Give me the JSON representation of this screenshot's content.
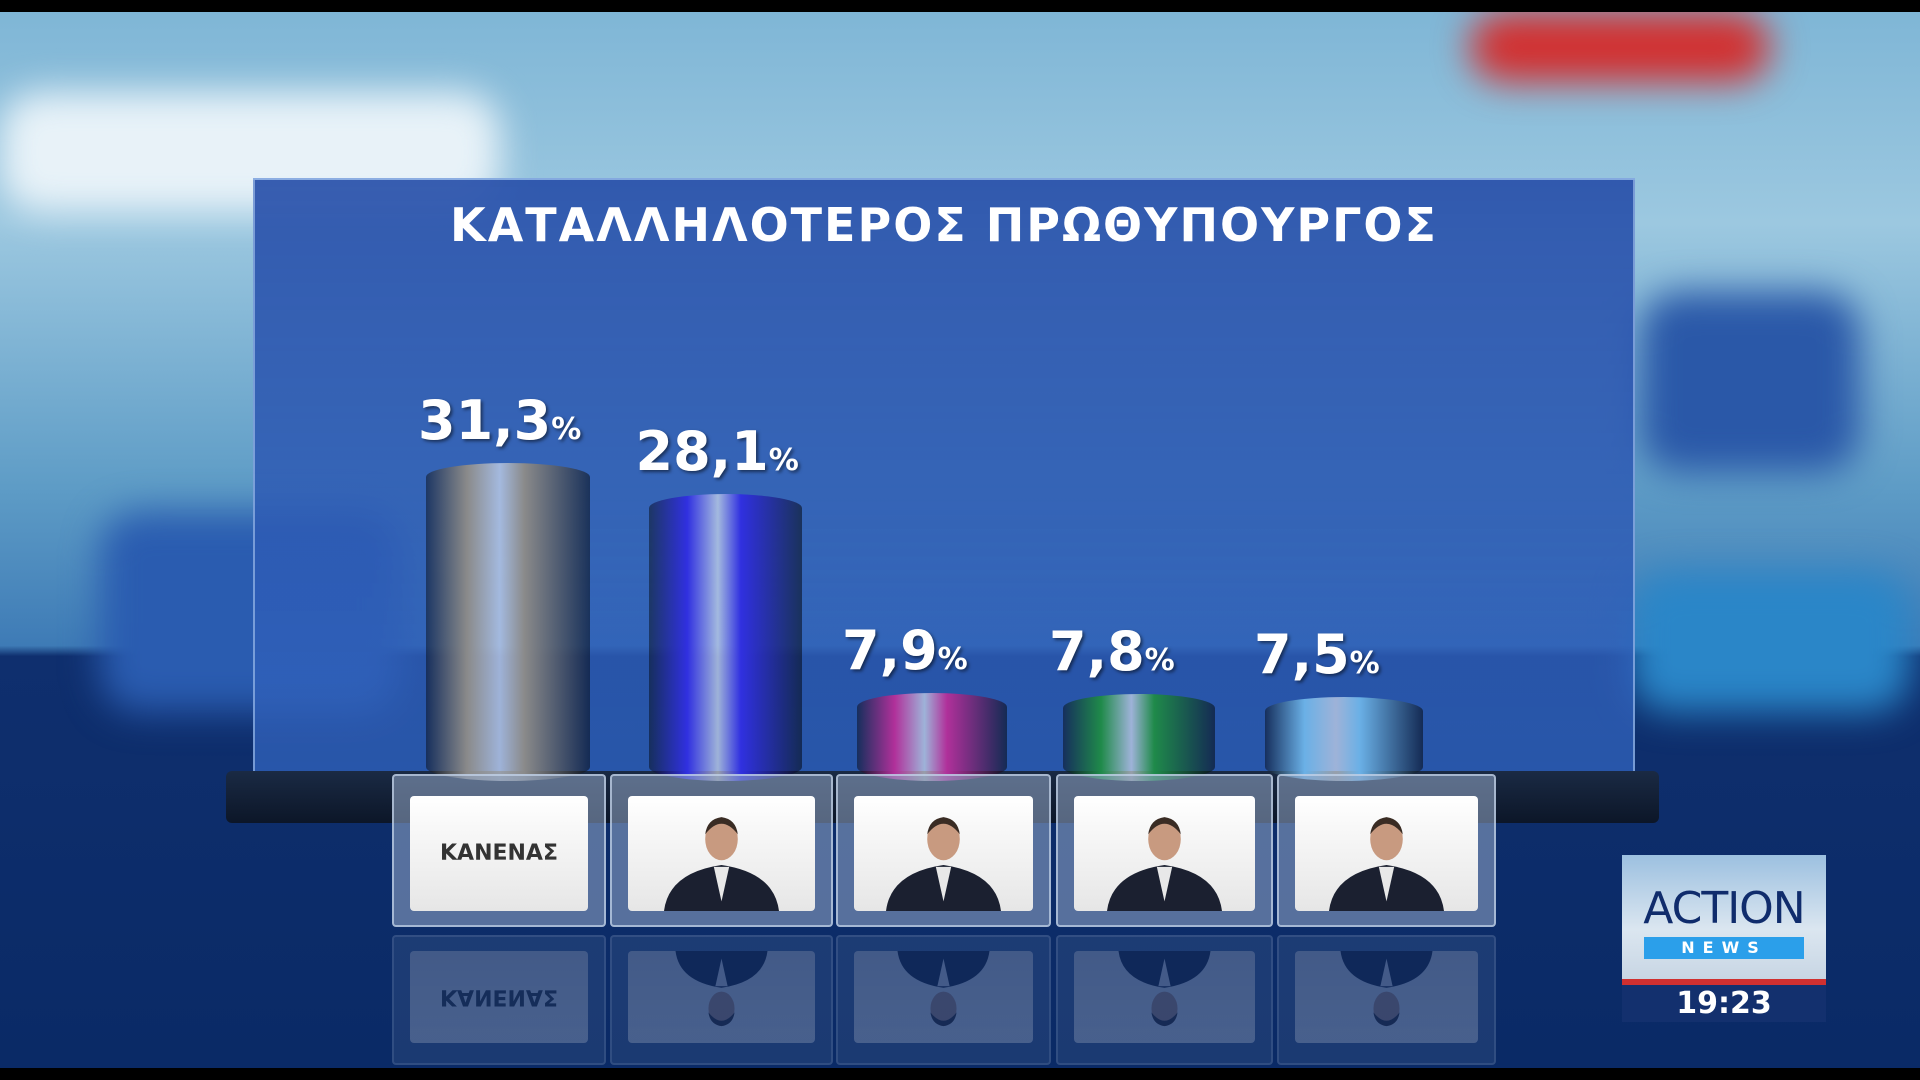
{
  "chart_data": {
    "type": "bar",
    "title": "ΚΑΤΑΛΛΗΛΟΤΕΡΟΣ  ΠΡΩΘΥΠΟΥΡΓΟΣ",
    "categories": [
      "ΚΑΝΕΝΑΣ",
      "candidate-2",
      "candidate-3",
      "candidate-4",
      "candidate-5"
    ],
    "values": [
      31.3,
      28.1,
      7.9,
      7.8,
      7.5
    ],
    "value_labels": [
      "31,3",
      "28,1",
      "7,9",
      "7,8",
      "7,5"
    ],
    "unit": "%",
    "colors": [
      "#8a8a8a",
      "#3030e0",
      "#b0309a",
      "#1f8a4a",
      "#6ab0e6"
    ],
    "ylim": [
      0,
      35
    ],
    "grid": false
  },
  "logo": {
    "brand": "ACTION",
    "sub": "NEWS",
    "time": "19:23"
  }
}
